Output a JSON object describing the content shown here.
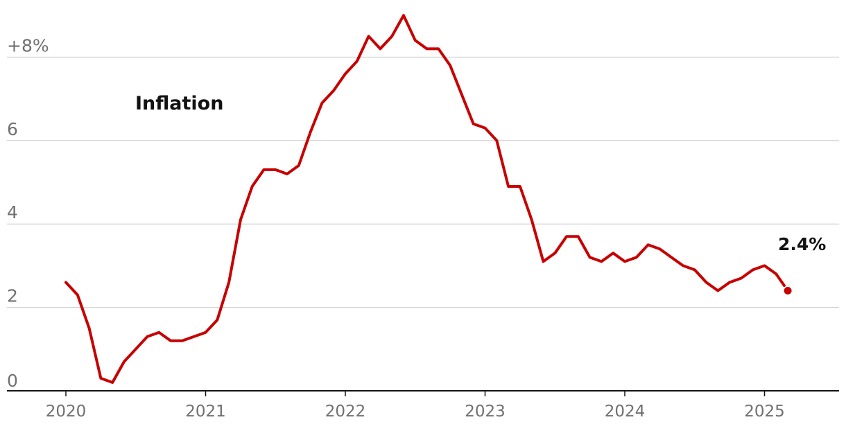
{
  "colors": {
    "series": "#c70000",
    "text": "#121212",
    "axis_text": "#707070",
    "grid": "#c8c8c8"
  },
  "chart_data": {
    "type": "line",
    "title": "",
    "xlabel": "",
    "ylabel": "",
    "ylim": [
      0,
      9
    ],
    "grid": true,
    "y_ticks": [
      0,
      2,
      4,
      6,
      8
    ],
    "y_tick_labels": [
      "0",
      "2",
      "4",
      "6",
      "+8%"
    ],
    "x_ticks": [
      2020,
      2021,
      2022,
      2023,
      2024,
      2025
    ],
    "x_tick_labels": [
      "2020",
      "2021",
      "2022",
      "2023",
      "2024",
      "2025"
    ],
    "series": [
      {
        "name": "Inflation",
        "end_label": "2.4%",
        "x": [
          "2020-01",
          "2020-02",
          "2020-03",
          "2020-04",
          "2020-05",
          "2020-06",
          "2020-07",
          "2020-08",
          "2020-09",
          "2020-10",
          "2020-11",
          "2020-12",
          "2021-01",
          "2021-02",
          "2021-03",
          "2021-04",
          "2021-05",
          "2021-06",
          "2021-07",
          "2021-08",
          "2021-09",
          "2021-10",
          "2021-11",
          "2021-12",
          "2022-01",
          "2022-02",
          "2022-03",
          "2022-04",
          "2022-05",
          "2022-06",
          "2022-07",
          "2022-08",
          "2022-09",
          "2022-10",
          "2022-11",
          "2022-12",
          "2023-01",
          "2023-02",
          "2023-03",
          "2023-04",
          "2023-05",
          "2023-06",
          "2023-07",
          "2023-08",
          "2023-09",
          "2023-10",
          "2023-11",
          "2023-12",
          "2024-01",
          "2024-02",
          "2024-03",
          "2024-04",
          "2024-05",
          "2024-06",
          "2024-07",
          "2024-08",
          "2024-09",
          "2024-10",
          "2024-11",
          "2024-12",
          "2025-01",
          "2025-02",
          "2025-03"
        ],
        "values": [
          2.6,
          2.3,
          1.5,
          0.3,
          0.2,
          0.7,
          1.0,
          1.3,
          1.4,
          1.2,
          1.2,
          1.3,
          1.4,
          1.7,
          2.6,
          4.1,
          4.9,
          5.3,
          5.3,
          5.2,
          5.4,
          6.2,
          6.9,
          7.2,
          7.6,
          7.9,
          8.5,
          8.2,
          8.5,
          9.0,
          8.4,
          8.2,
          8.2,
          7.8,
          7.1,
          6.4,
          6.3,
          6.0,
          4.9,
          4.9,
          4.1,
          3.1,
          3.3,
          3.7,
          3.7,
          3.2,
          3.1,
          3.3,
          3.1,
          3.2,
          3.5,
          3.4,
          3.2,
          3.0,
          2.9,
          2.6,
          2.4,
          2.6,
          2.7,
          2.9,
          3.0,
          2.8,
          2.4
        ]
      }
    ]
  }
}
